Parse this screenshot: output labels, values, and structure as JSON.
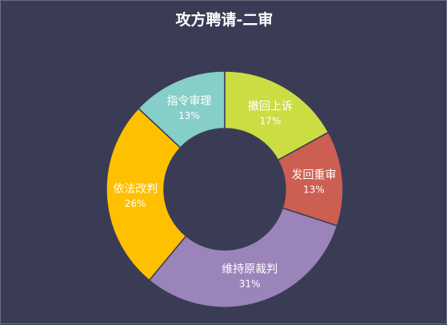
{
  "chart_data": {
    "type": "pie",
    "title": "攻方聘请-二审",
    "slices": [
      {
        "label": "撤回上诉",
        "value": 17,
        "value_text": "17%",
        "color": "#ccdd44"
      },
      {
        "label": "发回重审",
        "value": 13,
        "value_text": "13%",
        "color": "#cc5f52"
      },
      {
        "label": "维持原裁判",
        "value": 31,
        "value_text": "31%",
        "color": "#9b84ba"
      },
      {
        "label": "依法改判",
        "value": 26,
        "value_text": "26%",
        "color": "#ffc000"
      },
      {
        "label": "指令审理",
        "value": 13,
        "value_text": "13%",
        "color": "#86cec8"
      }
    ]
  }
}
